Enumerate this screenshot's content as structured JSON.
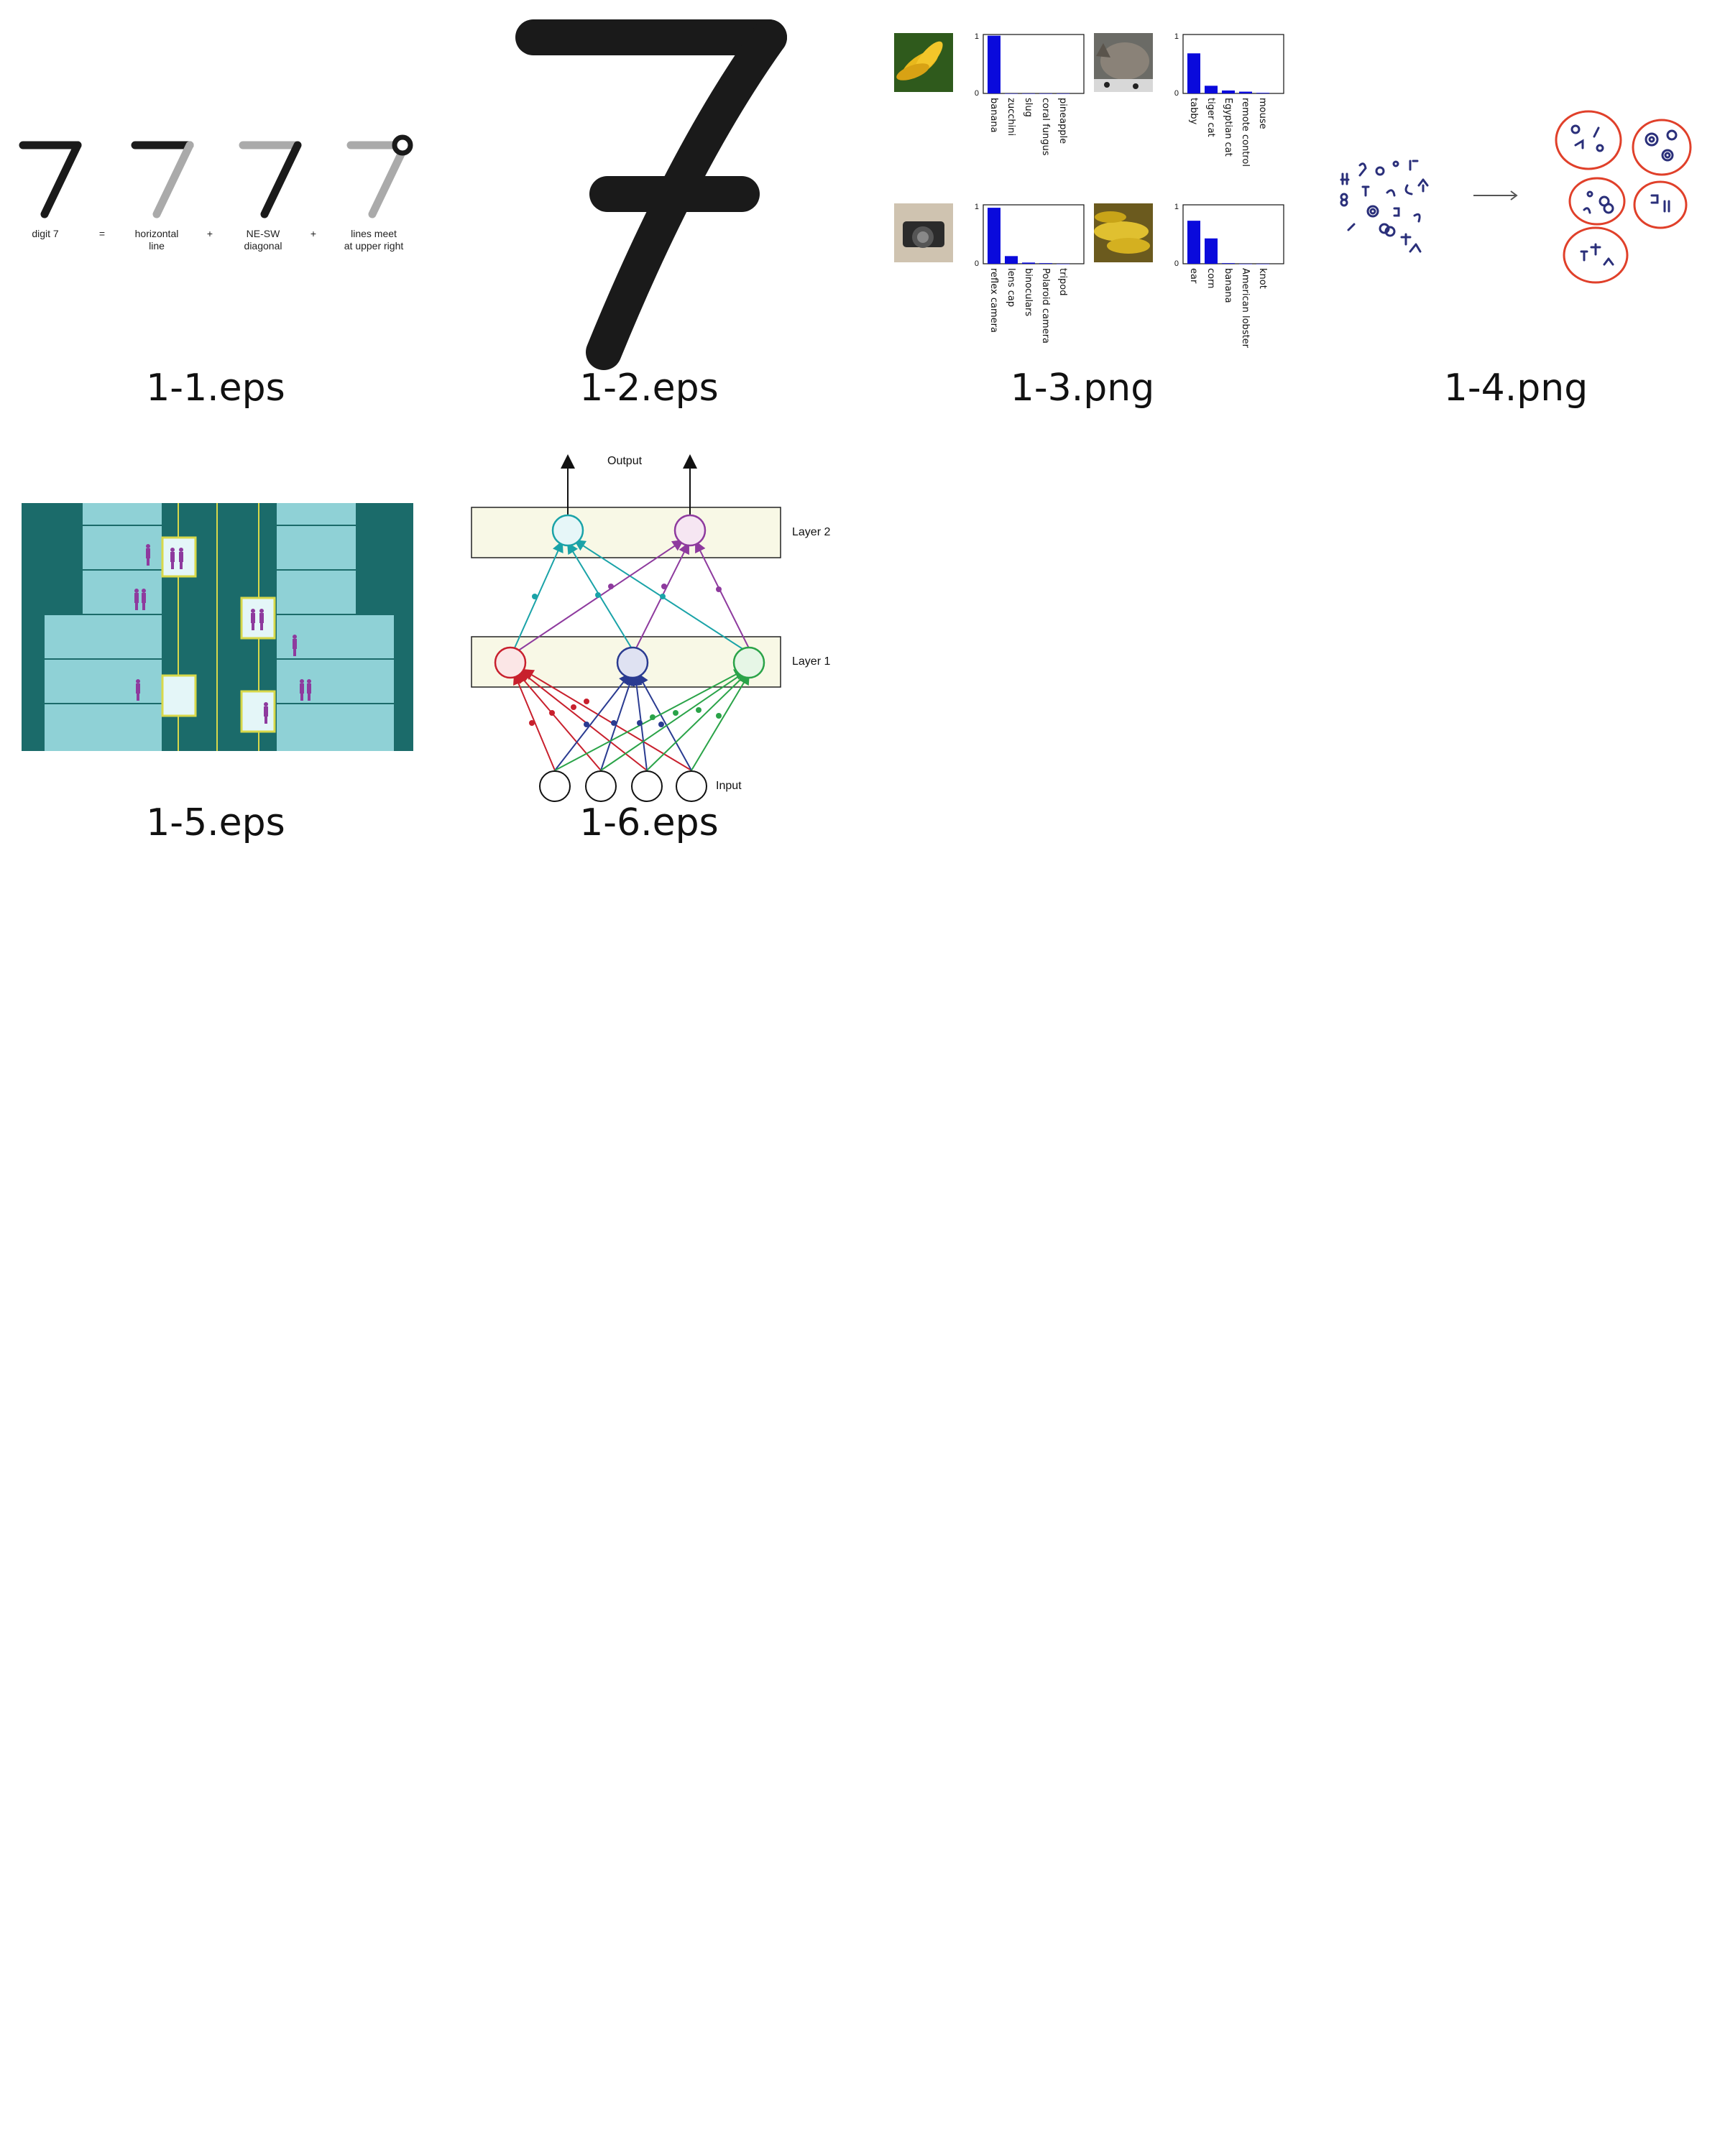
{
  "captions": [
    "1-1.eps",
    "1-2.eps",
    "1-3.png",
    "1-4.png",
    "1-5.eps",
    "1-6.eps"
  ],
  "fig1_1": {
    "labels": [
      "digit 7",
      "horizontal",
      "line",
      "NE-SW",
      "diagonal",
      "lines meet",
      "at upper right"
    ],
    "ops": [
      "=",
      "+",
      "+"
    ]
  },
  "fig1_3": {
    "panels": [
      {
        "image": "bananas-photo",
        "labels": [
          "banana",
          "zucchini",
          "slug",
          "coral fungus",
          "pineapple"
        ],
        "values": [
          0.98,
          0.0,
          0.0,
          0.0,
          0.0
        ]
      },
      {
        "image": "cat-photo",
        "labels": [
          "tabby",
          "tiger cat",
          "Egyptian cat",
          "remote control",
          "mouse"
        ],
        "values": [
          0.68,
          0.13,
          0.05,
          0.03,
          0.01
        ]
      },
      {
        "image": "camera-photo",
        "labels": [
          "reflex camera",
          "lens cap",
          "binoculars",
          "Polaroid camera",
          "tripod"
        ],
        "values": [
          0.95,
          0.13,
          0.02,
          0.01,
          0.0
        ]
      },
      {
        "image": "corn-photo",
        "labels": [
          "ear",
          "corn",
          "banana",
          "American lobster",
          "knot"
        ],
        "values": [
          0.73,
          0.43,
          0.01,
          0.0,
          0.0
        ]
      }
    ],
    "axis": {
      "top": "1",
      "bottom": "0"
    }
  },
  "fig1_6": {
    "output": "Output",
    "layer2": "Layer 2",
    "layer1": "Layer 1",
    "input": "Input"
  },
  "colors": {
    "teal": "#1b6b6a",
    "lightTeal": "#8fd1d6",
    "purple": "#8e3a9e",
    "red": "#c8202d",
    "blue": "#2a3b91",
    "green": "#2aa348",
    "cyan": "#1aa3a8",
    "bar": "#0a0adc",
    "cluster": "#e0402a"
  }
}
